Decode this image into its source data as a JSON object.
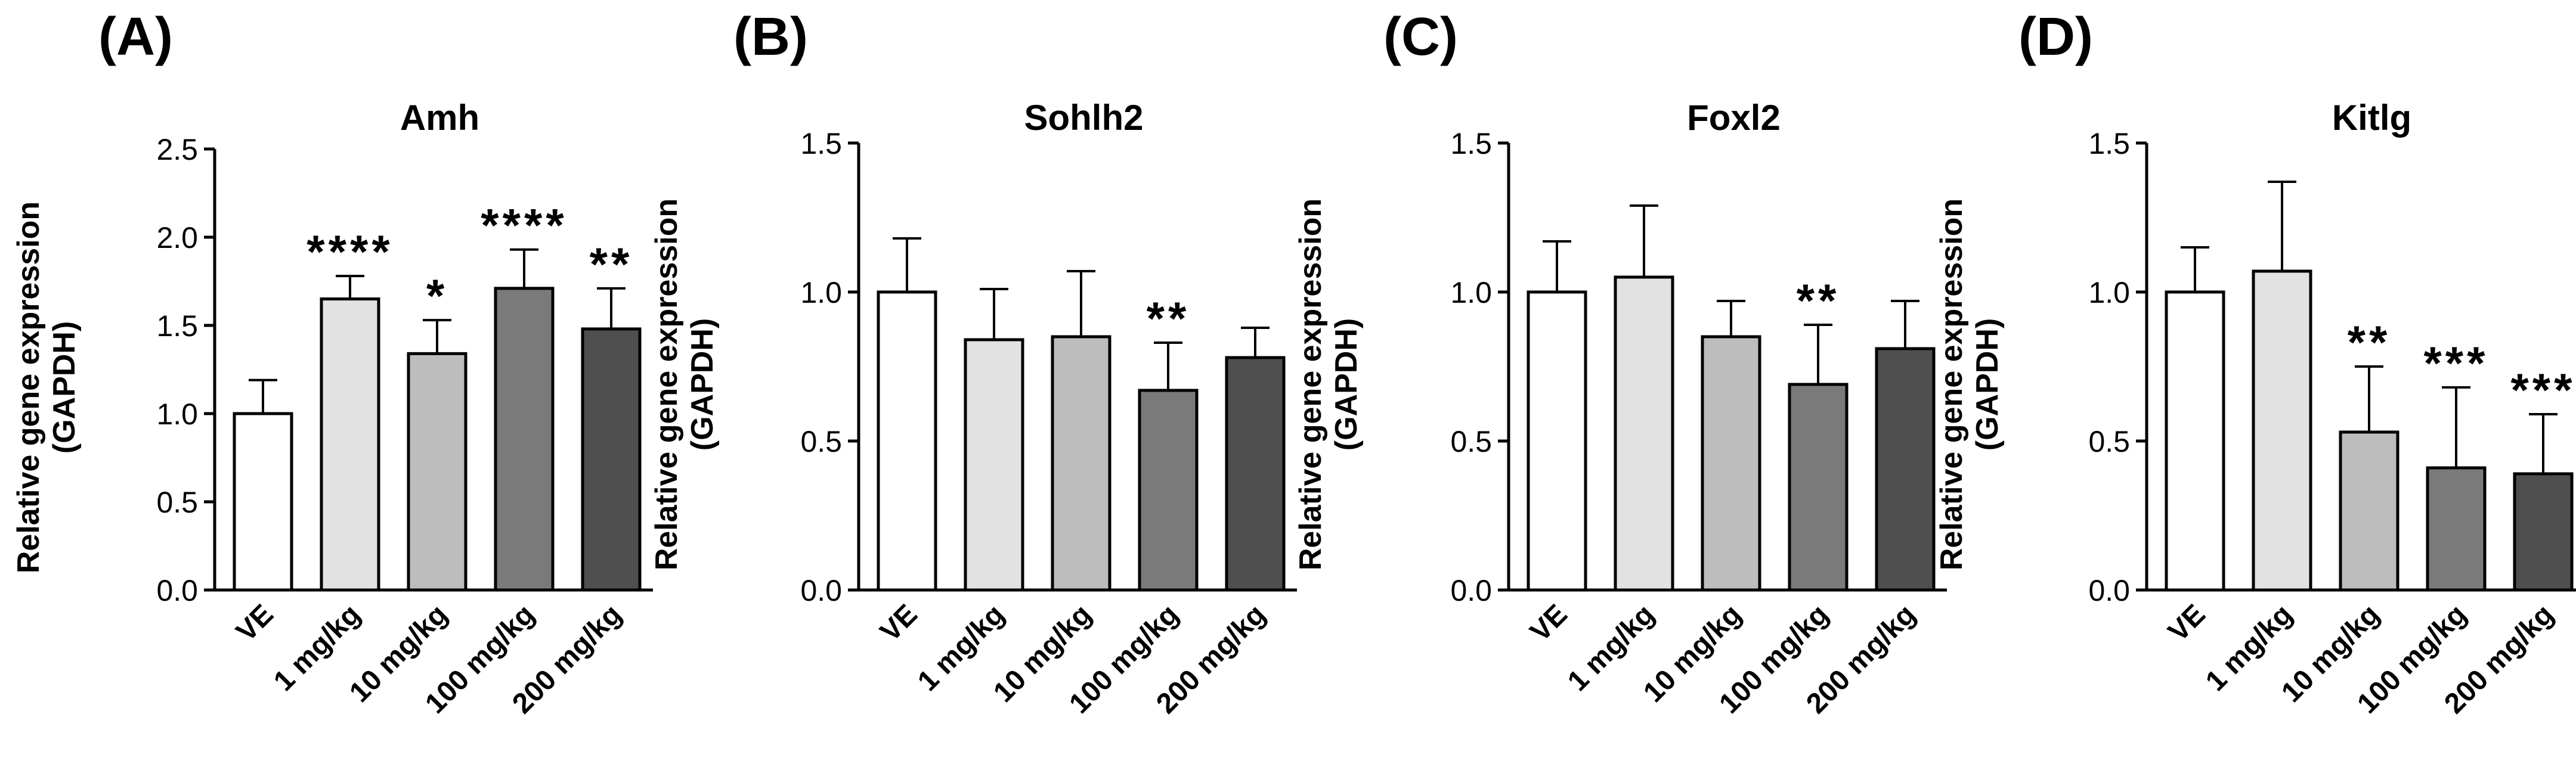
{
  "chart_data": [
    {
      "panel": "(A)",
      "type": "bar",
      "title": "Amh",
      "ylabel": [
        "Relative gene expression",
        "(GAPDH)"
      ],
      "ylim": [
        0,
        2.5
      ],
      "yticks": [
        "0.0",
        "0.5",
        "1.0",
        "1.5",
        "2.0",
        "2.5"
      ],
      "yticks_values": [
        0,
        0.5,
        1.0,
        1.5,
        2.0,
        2.5
      ],
      "categories": [
        "VE",
        "1 mg/kg",
        "10 mg/kg",
        "100 mg/kg",
        "200 mg/kg"
      ],
      "values": [
        1.0,
        1.65,
        1.34,
        1.71,
        1.48
      ],
      "errors": [
        0.19,
        0.13,
        0.19,
        0.22,
        0.23
      ],
      "significance": [
        "",
        "****",
        "*",
        "****",
        "**"
      ]
    },
    {
      "panel": "(B)",
      "type": "bar",
      "title": "Sohlh2",
      "ylabel": [
        "Relative gene expression",
        "(GAPDH)"
      ],
      "ylim": [
        0,
        1.5
      ],
      "yticks": [
        "0.0",
        "0.5",
        "1.0",
        "1.5"
      ],
      "yticks_values": [
        0,
        0.5,
        1.0,
        1.5
      ],
      "categories": [
        "VE",
        "1 mg/kg",
        "10 mg/kg",
        "100 mg/kg",
        "200 mg/kg"
      ],
      "values": [
        1.0,
        0.84,
        0.85,
        0.67,
        0.78
      ],
      "errors": [
        0.18,
        0.17,
        0.22,
        0.16,
        0.1
      ],
      "significance": [
        "",
        "",
        "",
        "**",
        ""
      ]
    },
    {
      "panel": "(C)",
      "type": "bar",
      "title": "Foxl2",
      "ylabel": [
        "Relative gene expression",
        "(GAPDH)"
      ],
      "ylim": [
        0,
        1.5
      ],
      "yticks": [
        "0.0",
        "0.5",
        "1.0",
        "1.5"
      ],
      "yticks_values": [
        0,
        0.5,
        1.0,
        1.5
      ],
      "categories": [
        "VE",
        "1 mg/kg",
        "10 mg/kg",
        "100 mg/kg",
        "200 mg/kg"
      ],
      "values": [
        1.0,
        1.05,
        0.85,
        0.69,
        0.81
      ],
      "errors": [
        0.17,
        0.24,
        0.12,
        0.2,
        0.16
      ],
      "significance": [
        "",
        "",
        "",
        "**",
        ""
      ]
    },
    {
      "panel": "(D)",
      "type": "bar",
      "title": "Kitlg",
      "ylabel": [
        "Relative gene expression",
        "(GAPDH)"
      ],
      "ylim": [
        0,
        1.5
      ],
      "yticks": [
        "0.0",
        "0.5",
        "1.0",
        "1.5"
      ],
      "yticks_values": [
        0,
        0.5,
        1.0,
        1.5
      ],
      "categories": [
        "VE",
        "1 mg/kg",
        "10 mg/kg",
        "100 mg/kg",
        "200 mg/kg"
      ],
      "values": [
        1.0,
        1.07,
        0.53,
        0.41,
        0.39
      ],
      "errors": [
        0.15,
        0.3,
        0.22,
        0.27,
        0.2
      ],
      "significance": [
        "",
        "",
        "**",
        "***",
        "***"
      ]
    }
  ],
  "colors": {
    "bar_fills": [
      "#ffffff",
      "#e2e2e2",
      "#bdbdbd",
      "#7a7a7a",
      "#4f4f4f"
    ],
    "stroke": "#000000"
  }
}
